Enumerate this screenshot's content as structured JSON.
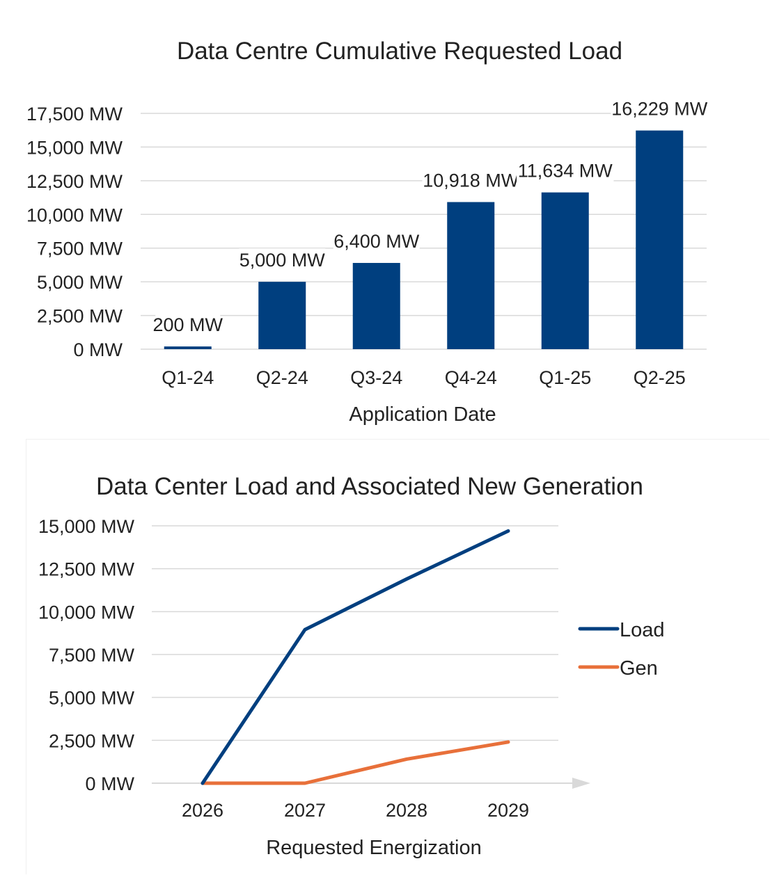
{
  "chart_data": [
    {
      "type": "bar",
      "title": "Data Centre Cumulative Requested Load",
      "xlabel": "Application Date",
      "ylabel": "",
      "categories": [
        "Q1-24",
        "Q2-24",
        "Q3-24",
        "Q4-24",
        "Q1-25",
        "Q2-25"
      ],
      "values": [
        200,
        5000,
        6400,
        10918,
        11634,
        16229
      ],
      "data_labels": [
        "200 MW",
        "5,000 MW",
        "6,400 MW",
        "10,918 MW",
        "11,634 MW",
        "16,229 MW"
      ],
      "yticks": [
        0,
        2500,
        5000,
        7500,
        10000,
        12500,
        15000,
        17500
      ],
      "ytick_labels": [
        "0 MW",
        "2,500 MW",
        "5,000 MW",
        "7,500 MW",
        "10,000 MW",
        "12,500 MW",
        "15,000 MW",
        "17,500 MW"
      ],
      "ylim": [
        0,
        17500
      ],
      "grid": true,
      "color": "#003f7f"
    },
    {
      "type": "line",
      "title": "Data Center Load and Associated New Generation",
      "xlabel": "Requested Energization",
      "ylabel": "",
      "categories": [
        "2026",
        "2027",
        "2028",
        "2029"
      ],
      "series": [
        {
          "name": "Load",
          "values": [
            0,
            8950,
            11900,
            14700
          ],
          "color": "#003f7f"
        },
        {
          "name": "Gen",
          "values": [
            0,
            0,
            1400,
            2400
          ],
          "color": "#e8703a"
        }
      ],
      "yticks": [
        0,
        2500,
        5000,
        7500,
        10000,
        12500,
        15000
      ],
      "ytick_labels": [
        "0 MW",
        "2,500 MW",
        "5,000 MW",
        "7,500 MW",
        "10,000 MW",
        "12,500 MW",
        "15,000 MW"
      ],
      "ylim": [
        0,
        15000
      ],
      "grid": true,
      "legend": "right"
    }
  ]
}
